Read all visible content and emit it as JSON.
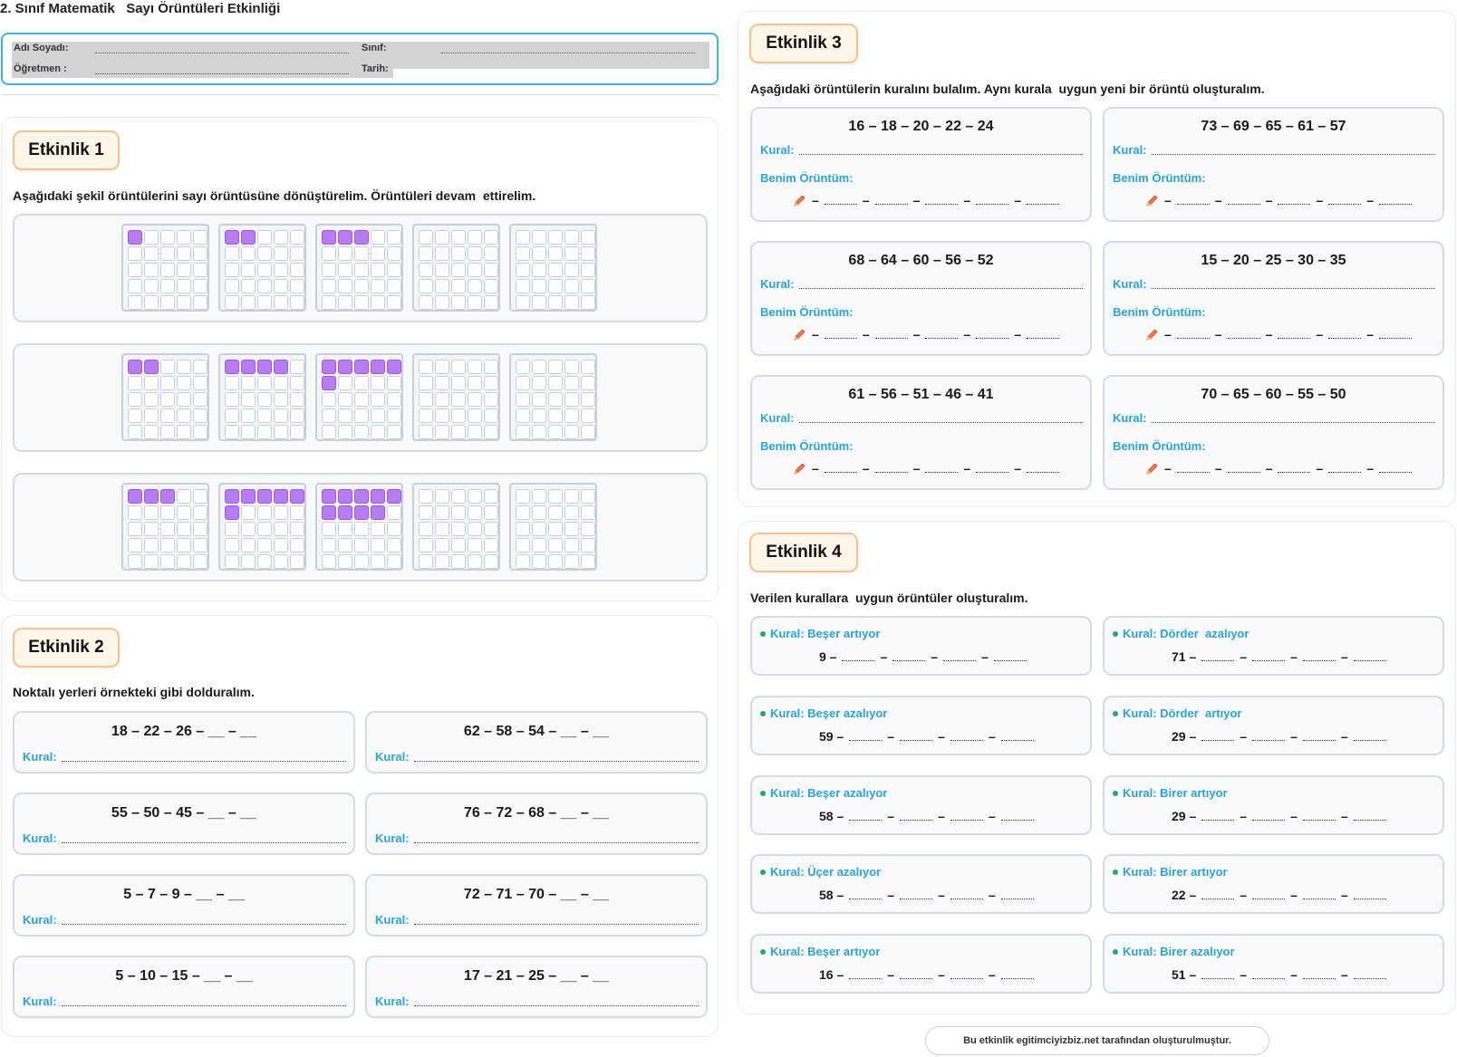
{
  "page": {
    "title": "2. Sınıf Matematik   Sayı Örüntüleri Etkinliği"
  },
  "info": {
    "name_label": "Adı Soyadı:",
    "teacher_label": "Öğretmen :",
    "class_label": "Sınıf:",
    "date_label": "Tarih:"
  },
  "etkinlik1": {
    "badge": "Etkinlik 1",
    "instruction": "Aşağıdaki şekil örüntülerini sayı örüntüsüne dönüştürelim. Örüntüleri devam  ettirelim.",
    "rows": [
      {
        "filled": [
          1,
          2,
          3,
          0,
          0
        ]
      },
      {
        "filled": [
          2,
          4,
          6,
          0,
          0
        ]
      },
      {
        "filled": [
          3,
          6,
          9,
          0,
          0
        ]
      }
    ]
  },
  "etkinlik2": {
    "badge": "Etkinlik 2",
    "instruction": "Noktalı yerleri örnekteki gibi dolduralım.",
    "kural_label": "Kural:",
    "items": [
      "18 – 22 – 26 – __ – __",
      "62 – 58 – 54 – __ – __",
      "55 – 50 – 45 – __ – __",
      "76 – 72 – 68 – __ – __",
      "5 – 7 – 9 – __ – __",
      "72 – 71 – 70 – __ – __",
      "5 – 10 – 15 – __ – __",
      "17 – 21 – 25 – __ – __"
    ]
  },
  "etkinlik3": {
    "badge": "Etkinlik 3",
    "instruction": "Aşağıdaki örüntülerin kuralını bulalım. Aynı kurala  uygun yeni bir örüntü oluşturalım.",
    "kural_label": "Kural:",
    "benim_label": "Benim Örüntüm:",
    "items": [
      "16 – 18 – 20 – 22 – 24",
      "73 – 69 – 65 – 61 – 57",
      "68 – 64 – 60 – 56 – 52",
      "15 – 20 – 25 – 30 – 35",
      "61 – 56 – 51 – 46 – 41",
      "70 – 65 – 60 – 55 – 50"
    ]
  },
  "etkinlik4": {
    "badge": "Etkinlik 4",
    "instruction": "Verilen kurallara  uygun örüntüler oluşturalım.",
    "items": [
      {
        "rule": "Kural: Beşer artıyor",
        "start": "9"
      },
      {
        "rule": "Kural: Dörder  azalıyor",
        "start": "71"
      },
      {
        "rule": "Kural: Beşer azalıyor",
        "start": "59"
      },
      {
        "rule": "Kural: Dörder  artıyor",
        "start": "29"
      },
      {
        "rule": "Kural: Beşer azalıyor",
        "start": "58"
      },
      {
        "rule": "Kural: Birer artıyor",
        "start": "29"
      },
      {
        "rule": "Kural: Üçer azalıyor",
        "start": "58"
      },
      {
        "rule": "Kural: Birer artıyor",
        "start": "22"
      },
      {
        "rule": "Kural: Beşer artıyor",
        "start": "16"
      },
      {
        "rule": "Kural: Birer azalıyor",
        "start": "51"
      }
    ]
  },
  "footer": {
    "text": "Bu etkinlik egitimciyizbiz.net tarafından oluşturulmuştur."
  },
  "colors": {
    "accent": "#2aa3d6",
    "purple": "#b67cf0",
    "badge_border": "#f3c48e",
    "info_border": "#44b0e6"
  }
}
